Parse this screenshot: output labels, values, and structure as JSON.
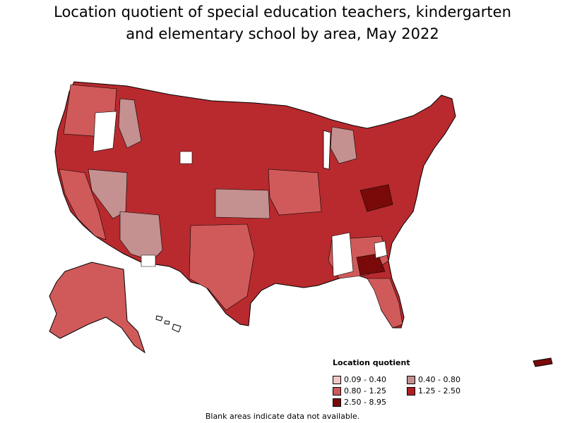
{
  "title_line1": "Location quotient of special education teachers, kindergarten",
  "title_line2": "and elementary school by area, May 2022",
  "legend": {
    "title": "Location quotient",
    "items": [
      {
        "label": "0.09 - 0.40",
        "color": "#f2c6c6"
      },
      {
        "label": "0.40 - 0.80",
        "color": "#c49090"
      },
      {
        "label": "0.80 - 1.25",
        "color": "#d05a5a"
      },
      {
        "label": "1.25 - 2.50",
        "color": "#b01e24"
      },
      {
        "label": "2.50 - 8.95",
        "color": "#7a0a0a"
      }
    ]
  },
  "footnote": "Blank areas indicate data not available."
}
